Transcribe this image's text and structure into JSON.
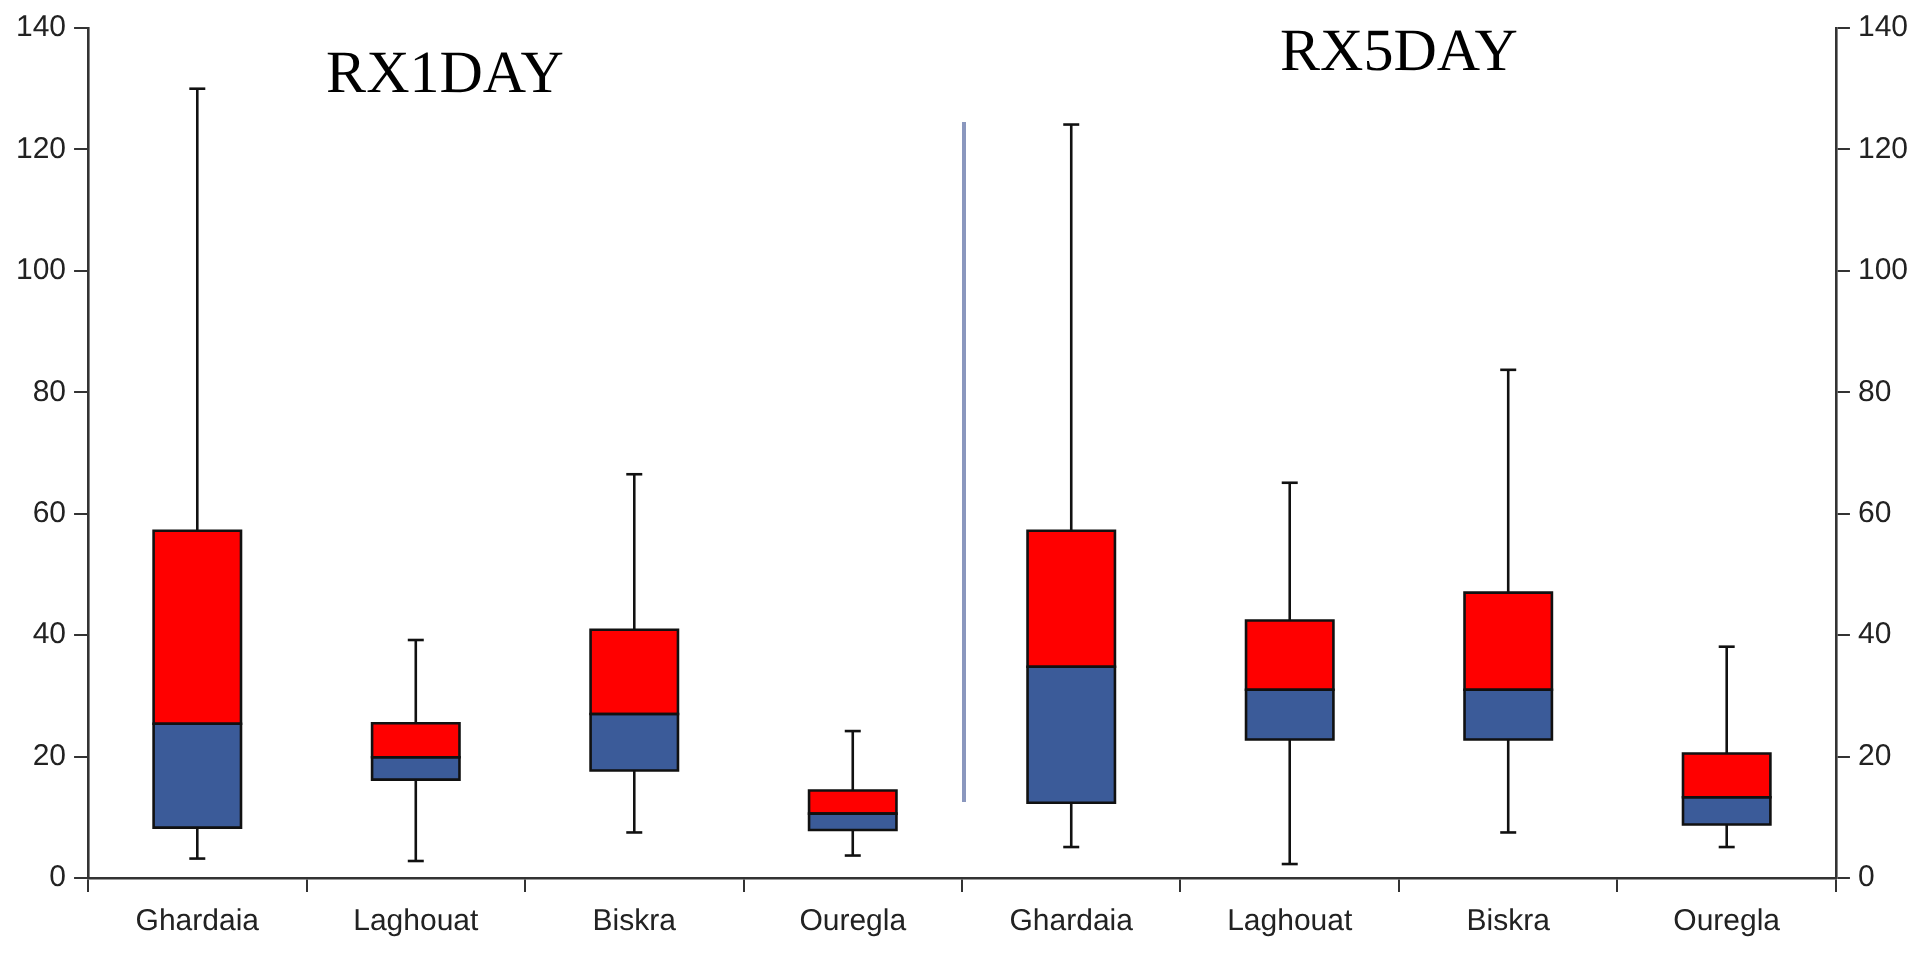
{
  "chart_data": {
    "type": "box",
    "categories": [
      "Ghardaia",
      "Laghouat",
      "Biskra",
      "Ouregla",
      "Ghardaia",
      "Laghouat",
      "Biskra",
      "Ouregla"
    ],
    "boxes": [
      {
        "low": 3.2,
        "q1": 8.3,
        "median": 25.4,
        "q3": 57.2,
        "high": 130
      },
      {
        "low": 2.8,
        "q1": 16.2,
        "median": 19.9,
        "q3": 25.5,
        "high": 39.2
      },
      {
        "low": 7.5,
        "q1": 17.7,
        "median": 27,
        "q3": 40.9,
        "high": 66.5
      },
      {
        "low": 3.7,
        "q1": 7.9,
        "median": 10.6,
        "q3": 14.4,
        "high": 24.2
      },
      {
        "low": 5.1,
        "q1": 12.4,
        "median": 34.8,
        "q3": 57.2,
        "high": 124.1
      },
      {
        "low": 2.3,
        "q1": 22.8,
        "median": 31,
        "q3": 42.4,
        "high": 65.1
      },
      {
        "low": 7.5,
        "q1": 22.8,
        "median": 31,
        "q3": 47,
        "high": 83.7
      },
      {
        "low": 5.1,
        "q1": 8.8,
        "median": 13.3,
        "q3": 20.5,
        "high": 38.1
      }
    ],
    "color": "#ff0000",
    "colors": [
      "#3b5b99",
      "#3b5b99",
      "#3b5b99",
      "#3b5b99",
      "#3b5b99",
      "#3b5b99",
      "#3b5b99",
      "#3b5b99"
    ],
    "annotations": [
      "RX1DAY",
      "RX5DAY"
    ],
    "ylim": [
      0,
      140
    ],
    "yticks": [
      0,
      20,
      40,
      60,
      80,
      100,
      120,
      140
    ],
    "y2lim": [
      0,
      140
    ],
    "y2ticks": [
      0,
      20,
      40,
      60,
      80,
      100,
      120,
      140
    ],
    "grid": false,
    "legend": false
  }
}
